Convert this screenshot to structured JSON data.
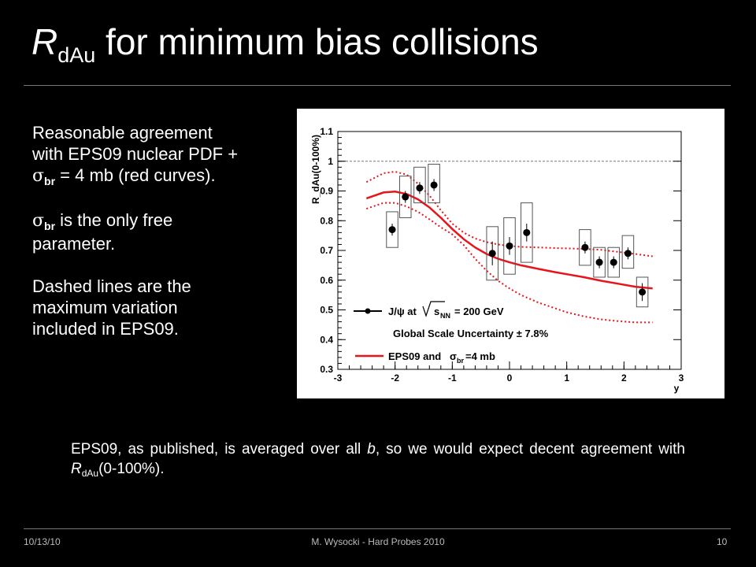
{
  "title": {
    "symbol": "R",
    "subscript": "dAu",
    "rest": " for minimum bias collisions"
  },
  "bullets": {
    "p1_line1": "Reasonable agreement",
    "p1_line2": "with EPS09 nuclear PDF +",
    "sigma": "σ",
    "br": "br",
    "p1_line3_rest": " = 4 mb (red curves).",
    "p2_rest": "  is the only free",
    "p2_line2": "parameter.",
    "p3_line1": "Dashed lines are the",
    "p3_line2": "maximum variation",
    "p3_line3": "included in EPS09."
  },
  "footnote": {
    "part1": "EPS09, as published, is averaged over all ",
    "b": "b",
    "part2": ", so we would expect decent agreement with ",
    "R": "R",
    "dAu": "dAu",
    "part3": "(0-100%)."
  },
  "footer": {
    "date": "10/13/10",
    "center": "M. Wysocki - Hard Probes 2010",
    "page": "10"
  },
  "colors": {
    "model": "#e8141a",
    "data": "#000000",
    "box": "#555555",
    "background": "#000000"
  },
  "chart_data": {
    "type": "scatter",
    "xlabel": "y",
    "ylabel": "R_dAu(0-100%)",
    "xlim": [
      -3,
      3
    ],
    "ylim": [
      0.3,
      1.1
    ],
    "xticks": [
      -3,
      -2,
      -1,
      0,
      1,
      2,
      3
    ],
    "yticks": [
      0.3,
      0.4,
      0.5,
      0.6,
      0.7,
      0.8,
      0.9,
      1.0,
      1.1
    ],
    "reference_line": 1.0,
    "legend": {
      "data_label": "J/ψ at",
      "energy": "= 200 GeV",
      "sqrt_s": "s",
      "sqrt_s_sub": "NN",
      "global_scale": "Global Scale Uncertainty ± 7.8%",
      "model_label": "EPS09 and",
      "model_sigma": "σ",
      "model_sigma_sub": "br",
      "model_value": "=4 mb"
    },
    "series": [
      {
        "name": "J/ψ at √s_NN = 200 GeV",
        "points": [
          {
            "x": -2.05,
            "y": 0.77,
            "err": 0.02,
            "sys_lo": 0.71,
            "sys_hi": 0.83,
            "box_w": 0.2
          },
          {
            "x": -1.82,
            "y": 0.88,
            "err": 0.02,
            "sys_lo": 0.81,
            "sys_hi": 0.95,
            "box_w": 0.2
          },
          {
            "x": -1.57,
            "y": 0.91,
            "err": 0.02,
            "sys_lo": 0.86,
            "sys_hi": 0.98,
            "box_w": 0.2
          },
          {
            "x": -1.32,
            "y": 0.92,
            "err": 0.02,
            "sys_lo": 0.86,
            "sys_hi": 0.99,
            "box_w": 0.2
          },
          {
            "x": -0.3,
            "y": 0.69,
            "err": 0.04,
            "sys_lo": 0.6,
            "sys_hi": 0.78,
            "box_w": 0.2
          },
          {
            "x": 0.0,
            "y": 0.715,
            "err": 0.03,
            "sys_lo": 0.62,
            "sys_hi": 0.81,
            "box_w": 0.2
          },
          {
            "x": 0.3,
            "y": 0.76,
            "err": 0.03,
            "sys_lo": 0.66,
            "sys_hi": 0.86,
            "box_w": 0.2
          },
          {
            "x": 1.32,
            "y": 0.71,
            "err": 0.02,
            "sys_lo": 0.65,
            "sys_hi": 0.77,
            "box_w": 0.2
          },
          {
            "x": 1.57,
            "y": 0.66,
            "err": 0.02,
            "sys_lo": 0.61,
            "sys_hi": 0.71,
            "box_w": 0.2
          },
          {
            "x": 1.82,
            "y": 0.66,
            "err": 0.02,
            "sys_lo": 0.61,
            "sys_hi": 0.71,
            "box_w": 0.2
          },
          {
            "x": 2.07,
            "y": 0.69,
            "err": 0.02,
            "sys_lo": 0.64,
            "sys_hi": 0.75,
            "box_w": 0.2
          },
          {
            "x": 2.32,
            "y": 0.56,
            "err": 0.03,
            "sys_lo": 0.51,
            "sys_hi": 0.61,
            "box_w": 0.2
          }
        ]
      }
    ],
    "curves": {
      "central": {
        "x": [
          -2.5,
          -2.2,
          -2.0,
          -1.8,
          -1.6,
          -1.4,
          -1.2,
          -1.0,
          -0.8,
          -0.6,
          -0.4,
          -0.2,
          0.0,
          0.2,
          0.5,
          0.8,
          1.0,
          1.3,
          1.6,
          1.9,
          2.2,
          2.5
        ],
        "y": [
          0.875,
          0.895,
          0.898,
          0.89,
          0.872,
          0.845,
          0.81,
          0.772,
          0.738,
          0.71,
          0.688,
          0.672,
          0.66,
          0.65,
          0.638,
          0.627,
          0.62,
          0.61,
          0.598,
          0.588,
          0.578,
          0.572
        ]
      },
      "upper": {
        "x": [
          -2.5,
          -2.2,
          -2.0,
          -1.8,
          -1.6,
          -1.4,
          -1.2,
          -1.0,
          -0.8,
          -0.6,
          -0.4,
          -0.2,
          0.0,
          0.2,
          0.5,
          0.8,
          1.0,
          1.3,
          1.6,
          1.9,
          2.2,
          2.5
        ],
        "y": [
          0.93,
          0.96,
          0.965,
          0.955,
          0.925,
          0.885,
          0.835,
          0.79,
          0.76,
          0.74,
          0.728,
          0.72,
          0.715,
          0.712,
          0.71,
          0.708,
          0.707,
          0.705,
          0.702,
          0.695,
          0.688,
          0.68
        ]
      },
      "lower": {
        "x": [
          -2.5,
          -2.2,
          -2.0,
          -1.8,
          -1.6,
          -1.4,
          -1.2,
          -1.0,
          -0.8,
          -0.6,
          -0.4,
          -0.2,
          0.0,
          0.2,
          0.5,
          0.8,
          1.0,
          1.3,
          1.6,
          1.9,
          2.2,
          2.5
        ],
        "y": [
          0.84,
          0.86,
          0.86,
          0.848,
          0.83,
          0.805,
          0.778,
          0.754,
          0.718,
          0.672,
          0.632,
          0.598,
          0.572,
          0.55,
          0.525,
          0.505,
          0.492,
          0.478,
          0.468,
          0.462,
          0.458,
          0.458
        ]
      }
    }
  }
}
